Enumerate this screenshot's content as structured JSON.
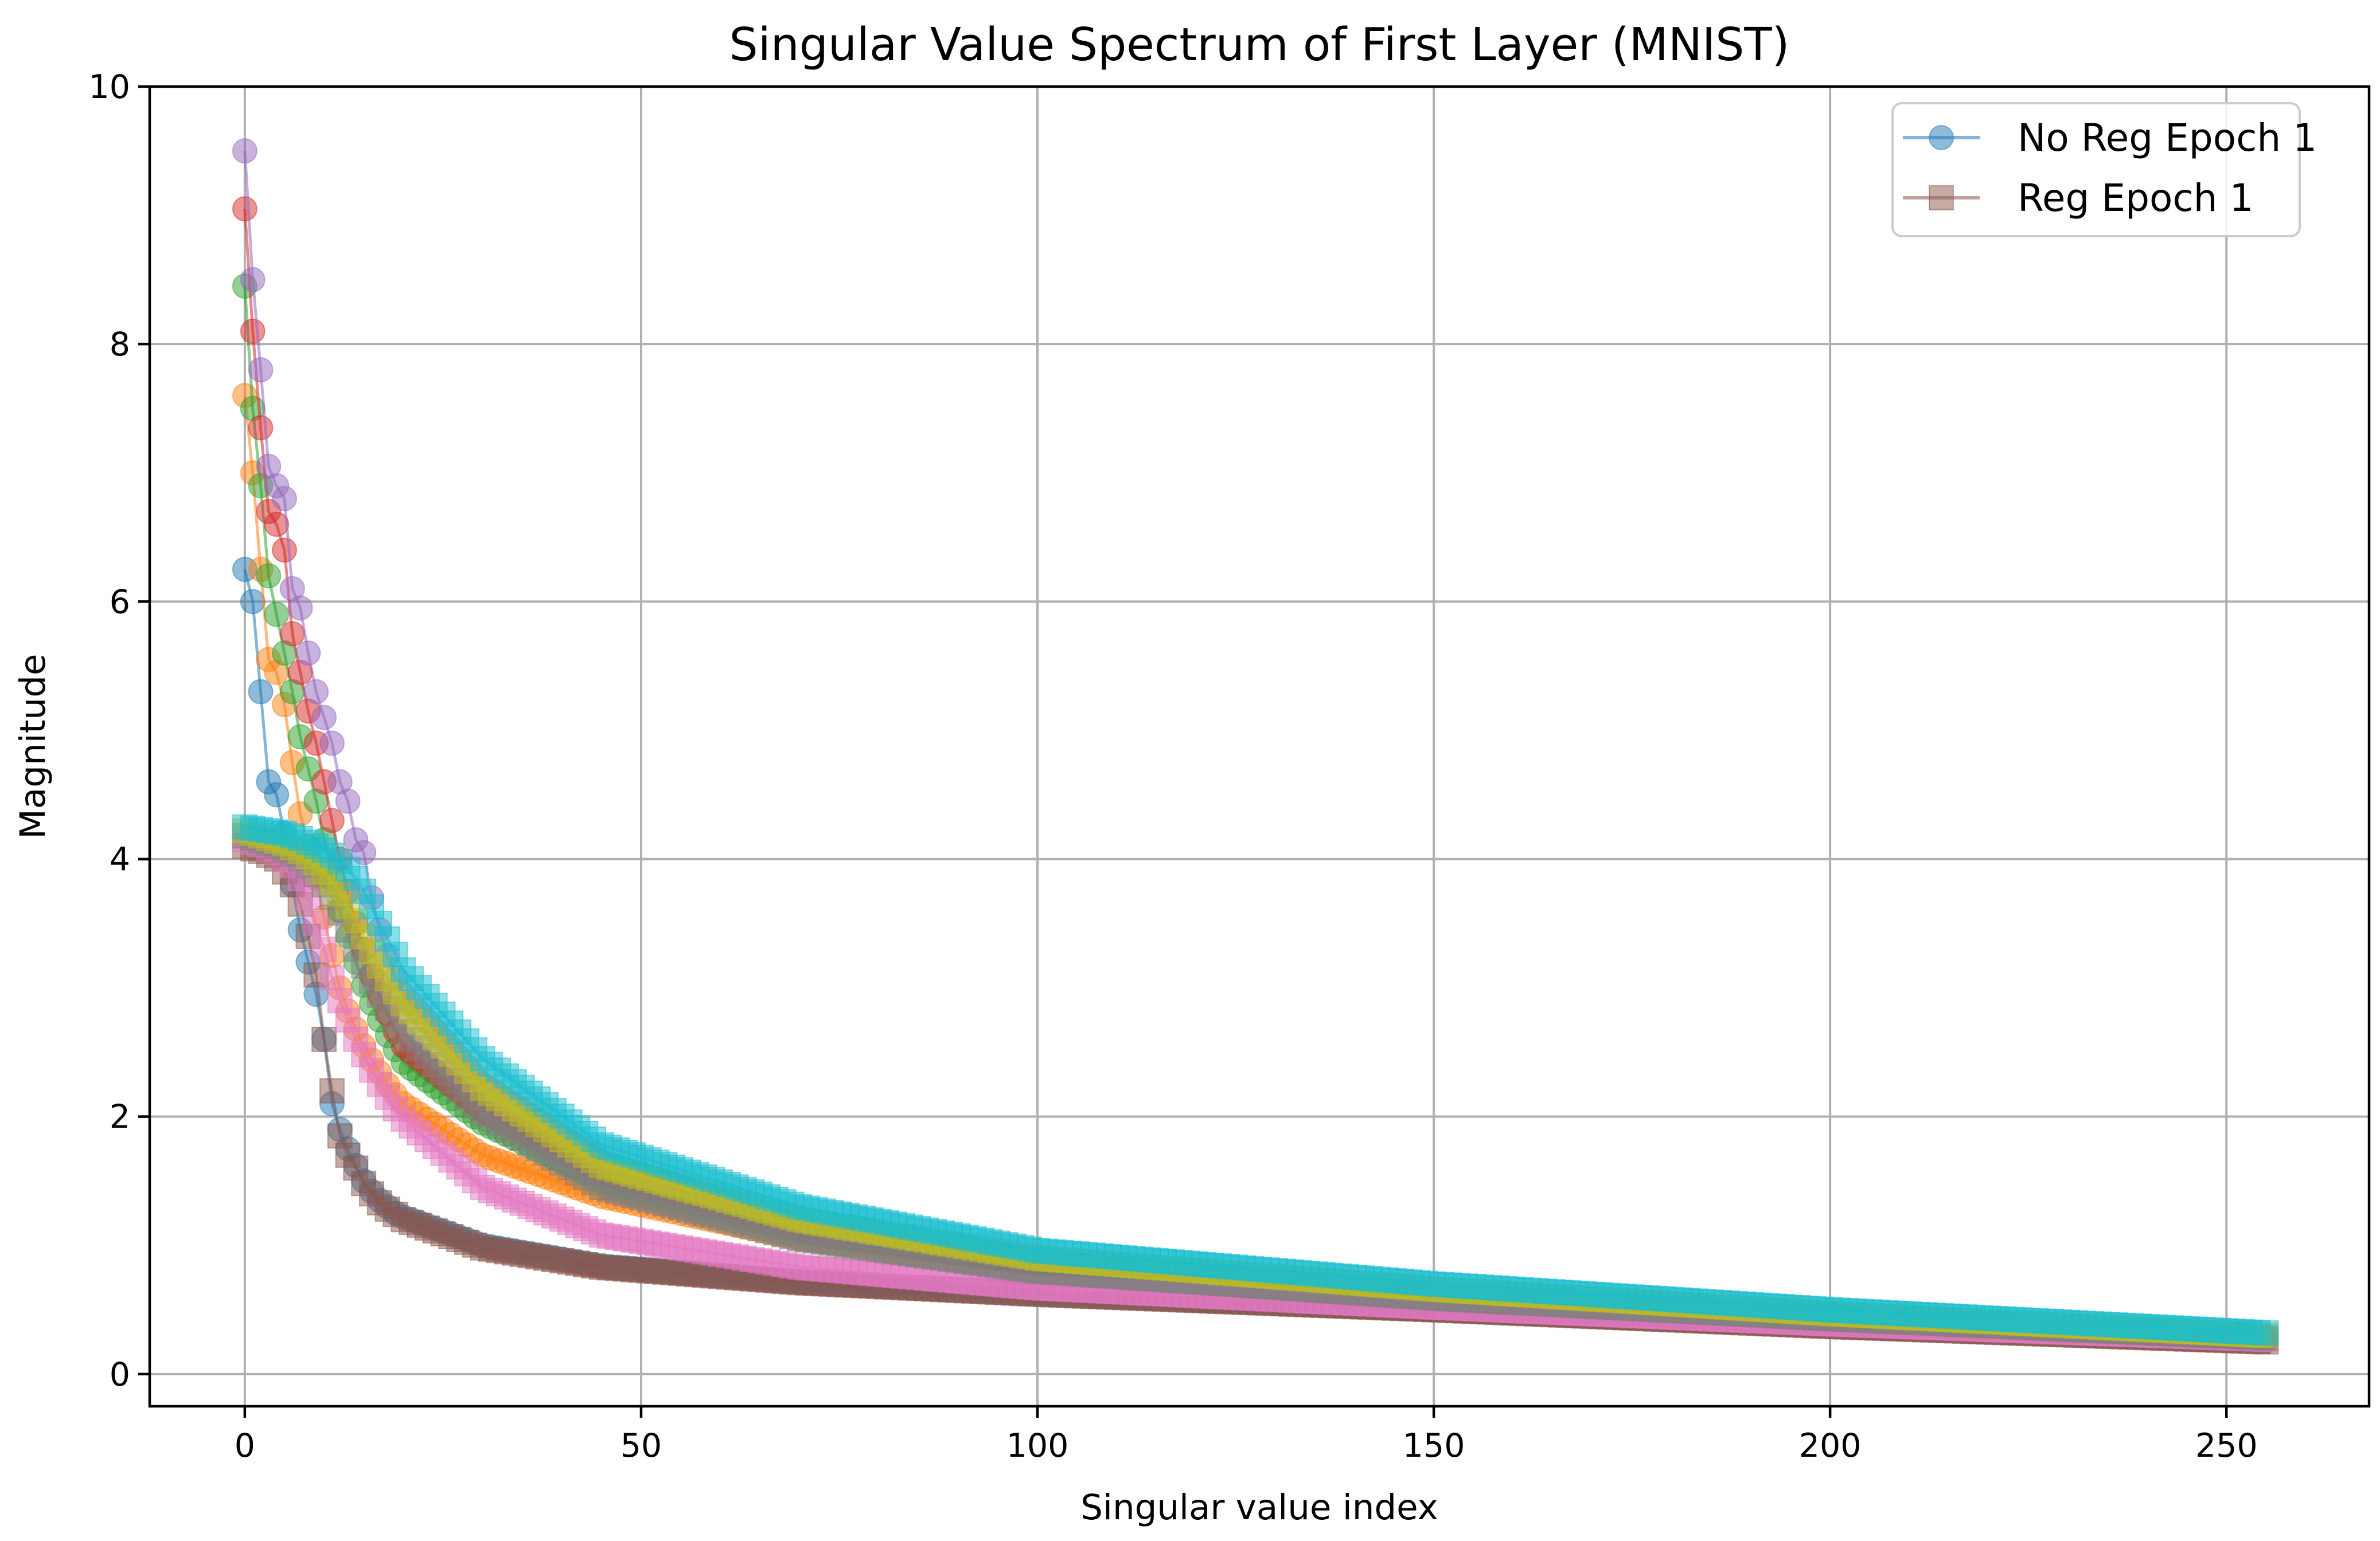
{
  "chart_data": {
    "type": "line",
    "title": "Singular Value Spectrum of First Layer (MNIST)",
    "xlabel": "Singular value index",
    "ylabel": "Magnitude",
    "xlim": [
      -12,
      268
    ],
    "ylim": [
      -0.25,
      10
    ],
    "x_ticks": [
      0,
      50,
      100,
      150,
      200,
      250
    ],
    "x_tick_labels": [
      "0",
      "50",
      "100",
      "150",
      "200",
      "250"
    ],
    "y_ticks": [
      0,
      2,
      4,
      6,
      8,
      10
    ],
    "y_tick_labels": [
      "0",
      "2",
      "4",
      "6",
      "8",
      "10"
    ],
    "grid": true,
    "legend_position": "top-right",
    "legend": [
      {
        "label": "No Reg Epoch 1",
        "color": "#1f77b4",
        "marker": "circle"
      },
      {
        "label": "Reg Epoch 1",
        "color": "#8c564b",
        "marker": "square"
      }
    ],
    "x_range": [
      0,
      255
    ],
    "series": [
      {
        "color": "#1f77b4",
        "marker": "circle",
        "values": [
          6.25,
          6.0,
          5.3,
          4.6,
          4.5,
          4.2,
          3.8,
          3.45,
          3.2,
          2.95,
          2.6,
          2.1,
          1.9,
          1.75,
          1.62,
          1.5,
          1.42,
          1.35,
          1.3,
          1.25
        ],
        "tail": [
          [
            20,
            1.22
          ],
          [
            30,
            1.0
          ],
          [
            45,
            0.84
          ],
          [
            70,
            0.72
          ],
          [
            100,
            0.63
          ],
          [
            150,
            0.5
          ],
          [
            200,
            0.38
          ],
          [
            255,
            0.26
          ]
        ]
      },
      {
        "color": "#ff7f0e",
        "marker": "circle",
        "values": [
          7.6,
          7.0,
          6.25,
          5.55,
          5.45,
          5.2,
          4.75,
          4.35,
          4.1,
          3.85,
          3.55,
          3.25,
          3.0,
          2.82,
          2.68,
          2.55,
          2.44,
          2.34,
          2.25,
          2.17
        ],
        "tail": [
          [
            20,
            2.1
          ],
          [
            30,
            1.7
          ],
          [
            45,
            1.38
          ],
          [
            70,
            1.05
          ],
          [
            100,
            0.82
          ],
          [
            150,
            0.6
          ],
          [
            200,
            0.43
          ],
          [
            255,
            0.27
          ]
        ]
      },
      {
        "color": "#2ca02c",
        "marker": "circle",
        "values": [
          8.45,
          7.5,
          6.9,
          6.2,
          5.9,
          5.6,
          5.3,
          4.95,
          4.7,
          4.45,
          4.15,
          3.85,
          3.6,
          3.4,
          3.2,
          3.02,
          2.88,
          2.75,
          2.63,
          2.52
        ],
        "tail": [
          [
            20,
            2.42
          ],
          [
            30,
            1.95
          ],
          [
            45,
            1.5
          ],
          [
            70,
            1.1
          ],
          [
            100,
            0.85
          ],
          [
            150,
            0.62
          ],
          [
            200,
            0.45
          ],
          [
            255,
            0.28
          ]
        ]
      },
      {
        "color": "#d62728",
        "marker": "circle",
        "values": [
          9.05,
          8.1,
          7.35,
          6.7,
          6.6,
          6.4,
          5.75,
          5.45,
          5.15,
          4.9,
          4.6,
          4.3,
          4.0,
          3.75,
          3.5,
          3.3,
          3.1,
          2.95,
          2.8,
          2.66
        ],
        "tail": [
          [
            20,
            2.55
          ],
          [
            30,
            2.05
          ],
          [
            45,
            1.56
          ],
          [
            70,
            1.12
          ],
          [
            100,
            0.86
          ],
          [
            150,
            0.62
          ],
          [
            200,
            0.45
          ],
          [
            255,
            0.28
          ]
        ]
      },
      {
        "color": "#9467bd",
        "marker": "circle",
        "values": [
          9.5,
          8.5,
          7.8,
          7.05,
          6.9,
          6.8,
          6.1,
          5.95,
          5.6,
          5.3,
          5.1,
          4.9,
          4.6,
          4.45,
          4.15,
          4.05,
          3.7,
          3.45,
          3.25,
          3.08
        ],
        "tail": [
          [
            20,
            2.95
          ],
          [
            30,
            2.25
          ],
          [
            45,
            1.65
          ],
          [
            70,
            1.17
          ],
          [
            100,
            0.88
          ],
          [
            150,
            0.63
          ],
          [
            200,
            0.46
          ],
          [
            255,
            0.29
          ]
        ]
      },
      {
        "color": "#8c564b",
        "marker": "square",
        "values": [
          4.1,
          4.08,
          4.06,
          4.03,
          4.0,
          3.9,
          3.8,
          3.65,
          3.4,
          3.1,
          2.6,
          2.2,
          1.85,
          1.7,
          1.6,
          1.48,
          1.4,
          1.33,
          1.28,
          1.24
        ],
        "tail": [
          [
            20,
            1.2
          ],
          [
            30,
            0.98
          ],
          [
            45,
            0.83
          ],
          [
            70,
            0.71
          ],
          [
            100,
            0.62
          ],
          [
            150,
            0.5
          ],
          [
            200,
            0.37
          ],
          [
            255,
            0.25
          ]
        ]
      },
      {
        "color": "#e377c2",
        "marker": "square",
        "values": [
          4.15,
          4.13,
          4.11,
          4.08,
          4.05,
          4.0,
          3.95,
          3.85,
          3.7,
          3.5,
          3.3,
          3.08,
          2.9,
          2.75,
          2.6,
          2.48,
          2.36,
          2.25,
          2.15,
          2.06
        ],
        "tail": [
          [
            20,
            1.98
          ],
          [
            30,
            1.45
          ],
          [
            45,
            1.08
          ],
          [
            70,
            0.83
          ],
          [
            100,
            0.67
          ],
          [
            150,
            0.52
          ],
          [
            200,
            0.39
          ],
          [
            255,
            0.27
          ]
        ]
      },
      {
        "color": "#7f7f7f",
        "marker": "square",
        "values": [
          4.18,
          4.16,
          4.14,
          4.12,
          4.1,
          4.07,
          4.04,
          4.0,
          3.95,
          3.88,
          3.8,
          3.7,
          3.58,
          3.45,
          3.3,
          3.17,
          3.05,
          2.94,
          2.84,
          2.75
        ],
        "tail": [
          [
            20,
            2.66
          ],
          [
            30,
            2.02
          ],
          [
            45,
            1.45
          ],
          [
            70,
            1.05
          ],
          [
            100,
            0.8
          ],
          [
            150,
            0.59
          ],
          [
            200,
            0.43
          ],
          [
            255,
            0.28
          ]
        ]
      },
      {
        "color": "#bcbd22",
        "marker": "square",
        "values": [
          4.22,
          4.2,
          4.18,
          4.16,
          4.14,
          4.12,
          4.09,
          4.06,
          4.02,
          3.97,
          3.9,
          3.82,
          3.73,
          3.63,
          3.52,
          3.4,
          3.28,
          3.17,
          3.07,
          2.97
        ],
        "tail": [
          [
            20,
            2.88
          ],
          [
            30,
            2.22
          ],
          [
            45,
            1.62
          ],
          [
            70,
            1.2
          ],
          [
            100,
            0.9
          ],
          [
            150,
            0.66
          ],
          [
            200,
            0.47
          ],
          [
            255,
            0.3
          ]
        ]
      },
      {
        "color": "#17becf",
        "marker": "square",
        "values": [
          4.25,
          4.24,
          4.23,
          4.22,
          4.21,
          4.2,
          4.18,
          4.16,
          4.13,
          4.1,
          4.07,
          4.03,
          3.98,
          3.92,
          3.85,
          3.75,
          3.63,
          3.5,
          3.38,
          3.26
        ],
        "tail": [
          [
            20,
            3.14
          ],
          [
            30,
            2.45
          ],
          [
            45,
            1.78
          ],
          [
            70,
            1.3
          ],
          [
            100,
            0.96
          ],
          [
            150,
            0.7
          ],
          [
            200,
            0.5
          ],
          [
            255,
            0.32
          ]
        ]
      }
    ]
  }
}
